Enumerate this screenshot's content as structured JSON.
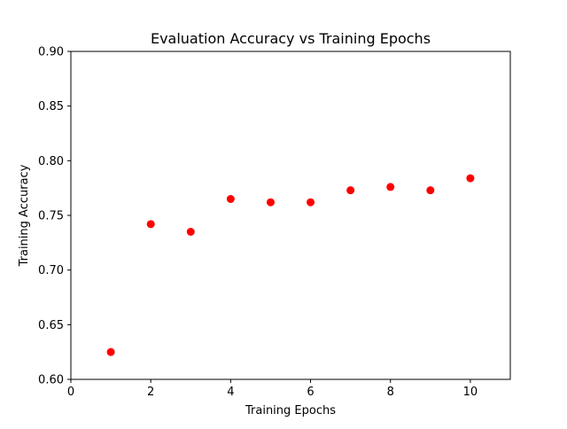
{
  "chart_data": {
    "type": "scatter",
    "title": "Evaluation Accuracy vs Training Epochs",
    "xlabel": "Training Epochs",
    "ylabel": "Training Accuracy",
    "xlim": [
      0,
      11
    ],
    "ylim": [
      0.6,
      0.9
    ],
    "xticks": [
      0,
      2,
      4,
      6,
      8,
      10
    ],
    "yticks": [
      0.6,
      0.65,
      0.7,
      0.75,
      0.8,
      0.85,
      0.9
    ],
    "ytick_labels": [
      "0.60",
      "0.65",
      "0.70",
      "0.75",
      "0.80",
      "0.85",
      "0.90"
    ],
    "grid": false,
    "series": [
      {
        "color": "#ff0000",
        "marker": "circle",
        "points": [
          {
            "x": 1,
            "y": 0.625
          },
          {
            "x": 2,
            "y": 0.742
          },
          {
            "x": 3,
            "y": 0.735
          },
          {
            "x": 4,
            "y": 0.765
          },
          {
            "x": 5,
            "y": 0.762
          },
          {
            "x": 6,
            "y": 0.762
          },
          {
            "x": 7,
            "y": 0.773
          },
          {
            "x": 8,
            "y": 0.776
          },
          {
            "x": 9,
            "y": 0.773
          },
          {
            "x": 10,
            "y": 0.784
          }
        ]
      }
    ]
  }
}
